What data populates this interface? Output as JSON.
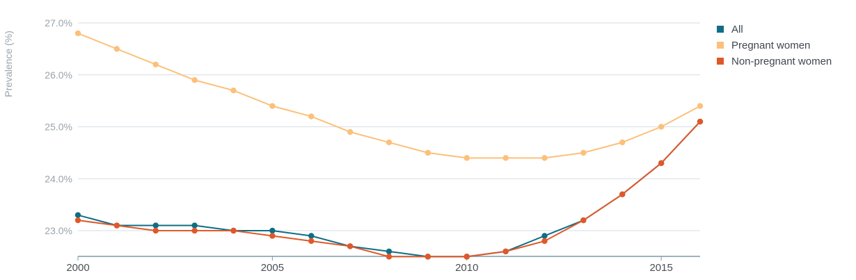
{
  "chart_data": {
    "type": "line",
    "ylabel": "Prevalence (%)",
    "x": [
      2000,
      2001,
      2002,
      2003,
      2004,
      2005,
      2006,
      2007,
      2008,
      2009,
      2010,
      2011,
      2012,
      2013,
      2014,
      2015,
      2016
    ],
    "xlim": [
      2000,
      2016
    ],
    "ylim": [
      22.5,
      27.2
    ],
    "x_ticks": [
      2000,
      2005,
      2010,
      2015
    ],
    "x_tick_labels": [
      "2000",
      "2005",
      "2010",
      "2015"
    ],
    "y_ticks": [
      23,
      24,
      25,
      26,
      27
    ],
    "y_tick_labels": [
      "23.0%",
      "24.0%",
      "25.0%",
      "26.0%",
      "27.0%"
    ],
    "grid": true,
    "legend_position": "right",
    "series": [
      {
        "name": "All",
        "color": "#0e6e85",
        "values": [
          23.3,
          23.1,
          23.1,
          23.1,
          23.0,
          23.0,
          22.9,
          22.7,
          22.6,
          22.5,
          22.5,
          22.6,
          22.9,
          23.2,
          23.7,
          24.3,
          25.1
        ]
      },
      {
        "name": "Pregnant women",
        "color": "#fcc07a",
        "values": [
          26.8,
          26.5,
          26.2,
          25.9,
          25.7,
          25.4,
          25.2,
          24.9,
          24.7,
          24.5,
          24.4,
          24.4,
          24.4,
          24.5,
          24.7,
          25.0,
          25.4
        ]
      },
      {
        "name": "Non-pregnant women",
        "color": "#e0582a",
        "values": [
          23.2,
          23.1,
          23.0,
          23.0,
          23.0,
          22.9,
          22.8,
          22.7,
          22.5,
          22.5,
          22.5,
          22.6,
          22.8,
          23.2,
          23.7,
          24.3,
          25.1
        ]
      }
    ]
  }
}
